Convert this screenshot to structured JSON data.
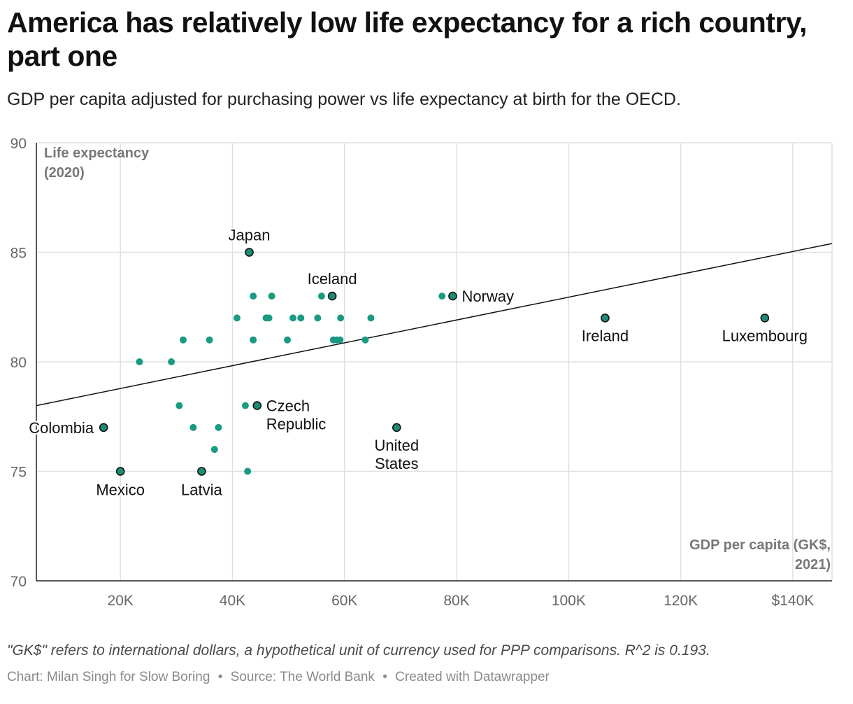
{
  "header": {
    "title": "America has relatively low life expectancy for a rich country, part one",
    "subtitle": "GDP per capita adjusted for purchasing power vs life expectancy at birth for the OECD."
  },
  "footer": {
    "note": "\"GK$\" refers to international dollars, a hypothetical unit of currency used for PPP comparisons. R^2 is 0.193.",
    "credit_chart": "Chart: Milan Singh for Slow Boring",
    "credit_source": "Source: The World Bank",
    "credit_created": "Created with Datawrapper",
    "separator": "•"
  },
  "chart_data": {
    "type": "scatter",
    "title": "America has relatively low life expectancy for a rich country, part one",
    "subtitle": "GDP per capita adjusted for purchasing power vs life expectancy at birth for the OECD.",
    "xlabel": "GDP per capita (GK$, 2021)",
    "ylabel": "Life expectancy (2020)",
    "xlim": [
      5000,
      147000
    ],
    "ylim": [
      70,
      90
    ],
    "x_ticks": [
      20000,
      40000,
      60000,
      80000,
      100000,
      120000,
      140000
    ],
    "x_tick_labels": [
      "20K",
      "40K",
      "60K",
      "80K",
      "100K",
      "120K",
      "$140K"
    ],
    "y_ticks": [
      70,
      75,
      80,
      85,
      90
    ],
    "y_tick_labels": [
      "70",
      "75",
      "80",
      "85",
      "90"
    ],
    "grid": true,
    "colors": {
      "point": "#1a9a82",
      "highlight": "#1d8c74",
      "outline": "#111111",
      "trend": "#111111",
      "grid": "#e0e0e0"
    },
    "trendline": {
      "x": [
        5000,
        147000
      ],
      "y": [
        78.0,
        85.4
      ]
    },
    "points": [
      {
        "x": 43000,
        "y": 85,
        "label": "Japan",
        "highlight": true
      },
      {
        "x": 57800,
        "y": 83,
        "label": "Iceland",
        "highlight": true
      },
      {
        "x": 79300,
        "y": 83,
        "label": "Norway",
        "highlight": true
      },
      {
        "x": 106500,
        "y": 82,
        "label": "Ireland",
        "highlight": true
      },
      {
        "x": 135000,
        "y": 82,
        "label": "Luxembourg",
        "highlight": true
      },
      {
        "x": 44400,
        "y": 78,
        "label": "Czech Republic",
        "highlight": true
      },
      {
        "x": 17000,
        "y": 77,
        "label": "Colombia",
        "highlight": true
      },
      {
        "x": 69300,
        "y": 77,
        "label": "United States",
        "highlight": true
      },
      {
        "x": 20000,
        "y": 75,
        "label": "Mexico",
        "highlight": true
      },
      {
        "x": 34500,
        "y": 75,
        "label": "Latvia",
        "highlight": true
      },
      {
        "x": 43700,
        "y": 83
      },
      {
        "x": 47000,
        "y": 83
      },
      {
        "x": 55900,
        "y": 83
      },
      {
        "x": 77400,
        "y": 83
      },
      {
        "x": 40800,
        "y": 82
      },
      {
        "x": 46000,
        "y": 82
      },
      {
        "x": 46500,
        "y": 82
      },
      {
        "x": 50800,
        "y": 82
      },
      {
        "x": 52200,
        "y": 82
      },
      {
        "x": 55200,
        "y": 82
      },
      {
        "x": 59300,
        "y": 82
      },
      {
        "x": 64700,
        "y": 82
      },
      {
        "x": 31200,
        "y": 81
      },
      {
        "x": 35900,
        "y": 81
      },
      {
        "x": 43700,
        "y": 81
      },
      {
        "x": 49800,
        "y": 81
      },
      {
        "x": 58000,
        "y": 81
      },
      {
        "x": 58600,
        "y": 81
      },
      {
        "x": 59200,
        "y": 81
      },
      {
        "x": 63700,
        "y": 81
      },
      {
        "x": 23400,
        "y": 80
      },
      {
        "x": 29100,
        "y": 80
      },
      {
        "x": 30500,
        "y": 78
      },
      {
        "x": 42300,
        "y": 78
      },
      {
        "x": 33000,
        "y": 77
      },
      {
        "x": 37500,
        "y": 77
      },
      {
        "x": 36800,
        "y": 76
      },
      {
        "x": 42700,
        "y": 75
      }
    ]
  }
}
